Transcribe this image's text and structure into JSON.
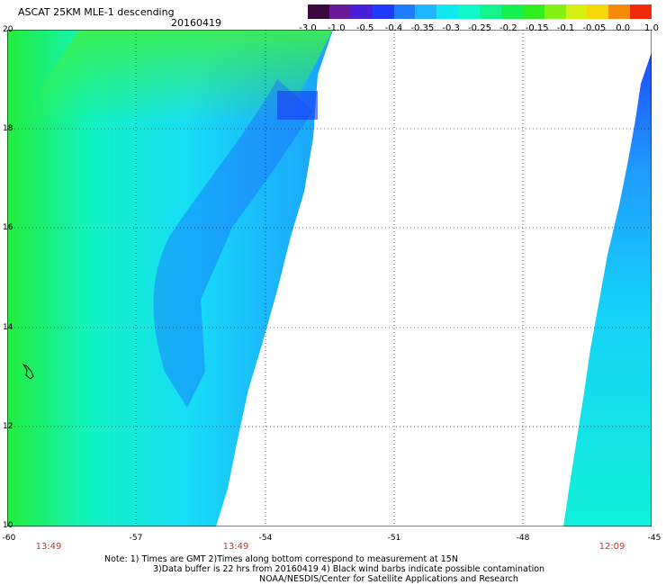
{
  "header": {
    "title": "ASCAT 25KM MLE-1 descending",
    "date": "20160419"
  },
  "colorbar": {
    "colors": [
      "#3b0a3d",
      "#6a1a9a",
      "#4a1fd8",
      "#1e3bff",
      "#1f7bff",
      "#1fb6ff",
      "#12e8f0",
      "#10f7c8",
      "#12f58c",
      "#16f050",
      "#30ee20",
      "#86f012",
      "#d6ef10",
      "#f5d80c",
      "#f58a0b",
      "#f02a0a"
    ],
    "ticks": [
      "-3.0",
      "-1.0",
      "-0.5",
      "-0.4",
      "-0.35",
      "-0.3",
      "-0.25",
      "-0.2",
      "-0.15",
      "-0.1",
      "-0.05",
      "0.0",
      "1.0"
    ]
  },
  "map": {
    "lat_labels": [
      "20",
      "18",
      "16",
      "14",
      "12",
      "10"
    ],
    "lon_labels": [
      "-60",
      "-57",
      "-54",
      "-51",
      "-48",
      "-45"
    ],
    "times": [
      "13:49",
      "13:49",
      "12:09"
    ]
  },
  "notes": {
    "line1": "Note: 1) Times are GMT 2)Times along bottom correspond to measurement at 15N",
    "line2": "3)Data buffer is 22 hrs from 20160419 4) Black wind barbs indicate possible contamination",
    "line3": "NOAA/NESDIS/Center for Satellite Applications and Research"
  }
}
